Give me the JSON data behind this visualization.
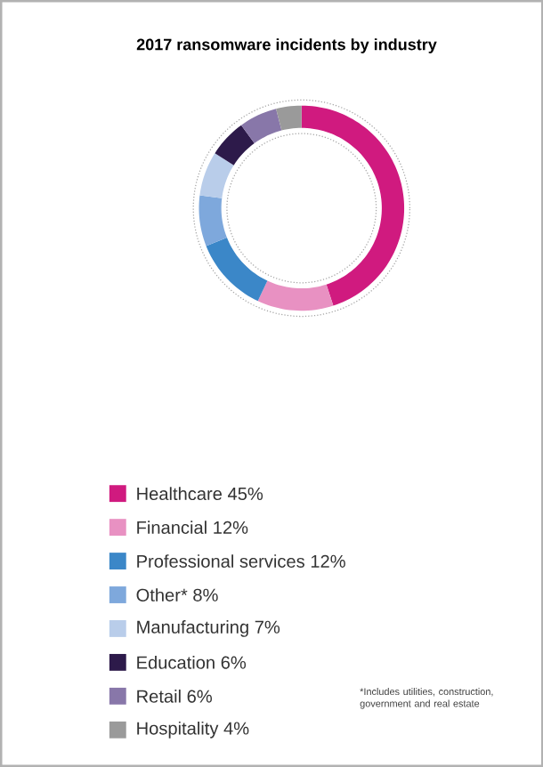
{
  "chart_data": {
    "type": "donut",
    "title": "2017 ransomware incidents by industry",
    "categories": [
      "Healthcare",
      "Financial",
      "Professional services",
      "Other*",
      "Manufacturing",
      "Education",
      "Retail",
      "Hospitality"
    ],
    "values": [
      45,
      12,
      12,
      8,
      7,
      6,
      6,
      4
    ],
    "value_labels": [
      "45%",
      "12%",
      "12%",
      "8%",
      "7%",
      "6%",
      "6%",
      "4%"
    ],
    "colors": [
      "#d01a7f",
      "#e891c2",
      "#3b87c8",
      "#7ea8dc",
      "#b9cdea",
      "#2d1a4a",
      "#8877a9",
      "#9a9a9a"
    ],
    "legend": "bottom",
    "annotations": [
      "*Includes utilities, construction, government and real estate"
    ]
  }
}
